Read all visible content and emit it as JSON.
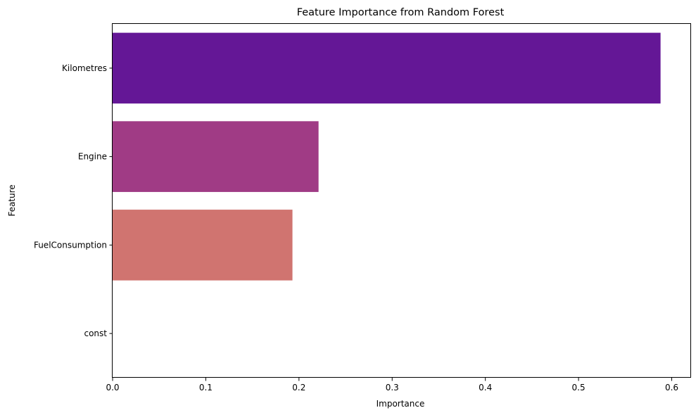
{
  "chart_data": {
    "type": "bar",
    "orientation": "horizontal",
    "title": "Feature Importance from Random Forest",
    "xlabel": "Importance",
    "ylabel": "Feature",
    "categories": [
      "Kilometres",
      "Engine",
      "FuelConsumption",
      "const"
    ],
    "values": [
      0.588,
      0.221,
      0.193,
      0.0
    ],
    "colors": [
      "#641796",
      "#a03b85",
      "#d07470",
      "#f1f5b3"
    ],
    "xlim": [
      0,
      0.62
    ],
    "xticks": [
      0.0,
      0.1,
      0.2,
      0.3,
      0.4,
      0.5,
      0.6
    ],
    "xtick_labels": [
      "0.0",
      "0.1",
      "0.2",
      "0.3",
      "0.4",
      "0.5",
      "0.6"
    ],
    "grid": false,
    "legend": "none"
  }
}
